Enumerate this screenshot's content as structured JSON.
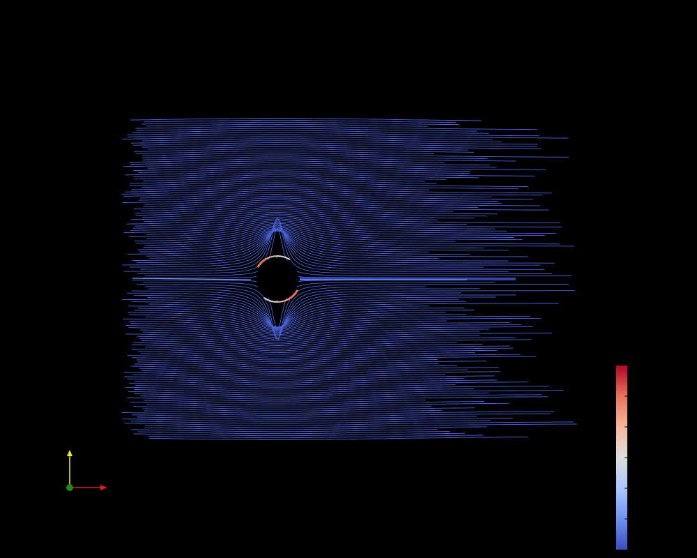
{
  "viewer": {
    "background": "#000000"
  },
  "scene": {
    "object": "streamlines-around-cylinder",
    "colormap": [
      "#3b4cc0",
      "#6f92f3",
      "#aac7fd",
      "#dddddd",
      "#f7b89c",
      "#e7745b",
      "#b40426"
    ],
    "obstacle_color": "#000000"
  },
  "orientation_axes": {
    "x_color": "#e31a1c",
    "y_color": "#f2f21a",
    "z_color": "#1a8c1a"
  },
  "colorbar": {
    "tick_count": 5,
    "tick_color": "#000000"
  }
}
